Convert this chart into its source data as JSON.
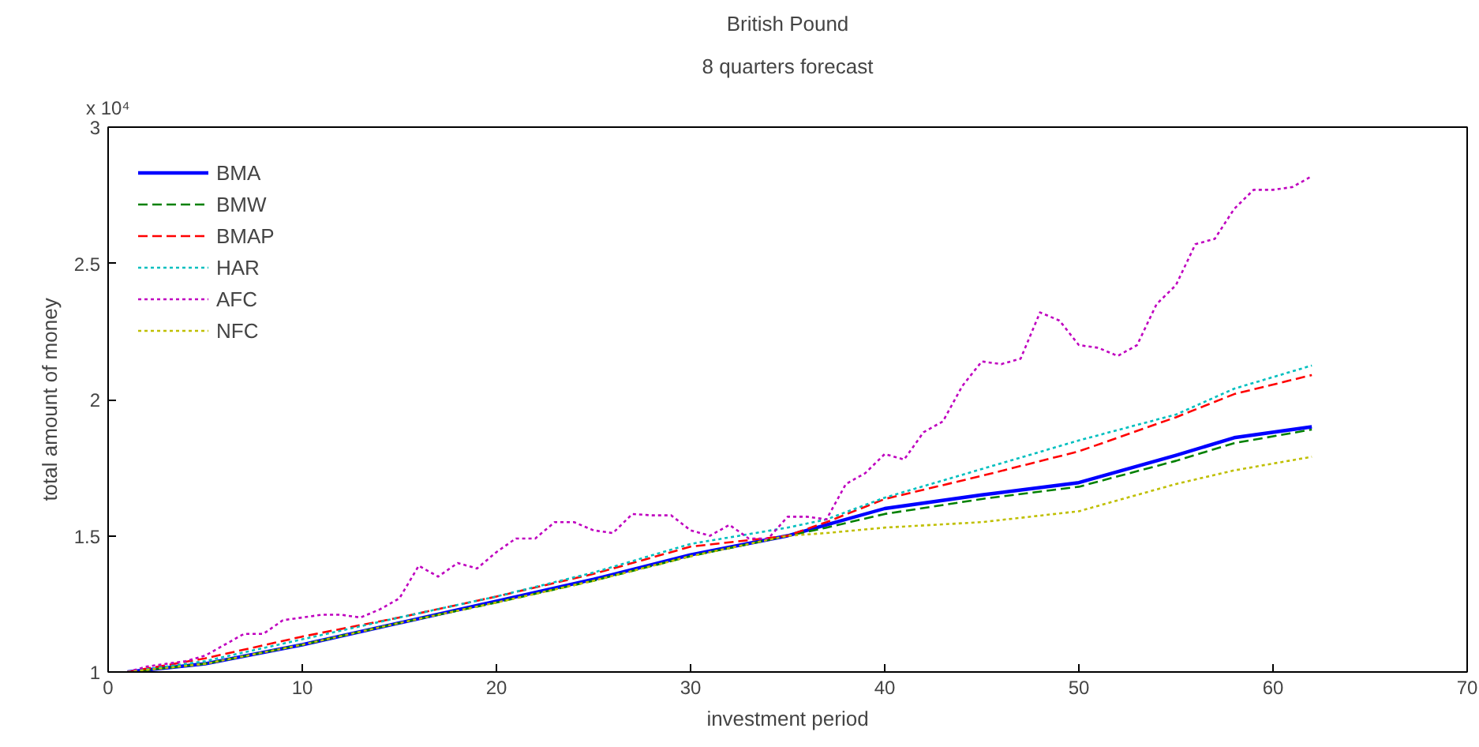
{
  "chart_data": {
    "type": "line",
    "title": "British Pound",
    "subtitle": "8 quarters forecast",
    "xlabel": "investment period",
    "ylabel": "total amount of money",
    "annotations": [
      "x 10⁴"
    ],
    "xlim": [
      0,
      70
    ],
    "xticks": [
      0,
      10,
      20,
      30,
      40,
      50,
      60,
      70
    ],
    "ylim": [
      1,
      3
    ],
    "yticks": [
      1,
      1.5,
      2,
      2.5,
      3
    ],
    "grid": false,
    "legend": "top left",
    "marker": "none",
    "series": [
      {
        "name": "BMA",
        "color": "#0000ff",
        "line_style": "solid",
        "x": [
          1,
          5,
          10,
          15,
          20,
          25,
          30,
          35,
          37,
          40,
          45,
          50,
          55,
          58,
          62
        ],
        "values": [
          1.0,
          1.03,
          1.1,
          1.18,
          1.26,
          1.34,
          1.43,
          1.5,
          1.54,
          1.6,
          1.65,
          1.695,
          1.795,
          1.86,
          1.9
        ]
      },
      {
        "name": "BMW",
        "color": "#008000",
        "line_style": "dashed",
        "x": [
          1,
          5,
          10,
          15,
          20,
          25,
          30,
          35,
          37,
          40,
          45,
          50,
          55,
          58,
          62
        ],
        "values": [
          1.0,
          1.03,
          1.1,
          1.18,
          1.255,
          1.335,
          1.425,
          1.5,
          1.53,
          1.58,
          1.635,
          1.68,
          1.775,
          1.84,
          1.89
        ]
      },
      {
        "name": "BMAP",
        "color": "#ff0000",
        "line_style": "dashed",
        "x": [
          1,
          5,
          10,
          15,
          20,
          25,
          30,
          35,
          37,
          40,
          45,
          50,
          55,
          58,
          62
        ],
        "values": [
          1.0,
          1.05,
          1.13,
          1.2,
          1.277,
          1.36,
          1.46,
          1.5,
          1.55,
          1.635,
          1.72,
          1.81,
          1.935,
          2.02,
          2.09
        ]
      },
      {
        "name": "HAR",
        "color": "#00bfbf",
        "line_style": "dotted",
        "x": [
          1,
          5,
          10,
          15,
          20,
          25,
          30,
          35,
          37,
          40,
          45,
          50,
          55,
          58,
          62
        ],
        "values": [
          1.0,
          1.04,
          1.12,
          1.2,
          1.277,
          1.365,
          1.47,
          1.53,
          1.56,
          1.64,
          1.745,
          1.85,
          1.945,
          2.04,
          2.125
        ]
      },
      {
        "name": "AFC",
        "color": "#bf00bf",
        "line_style": "dotted",
        "x": [
          1,
          2,
          3,
          4,
          5,
          6,
          7,
          8,
          9,
          10,
          11,
          12,
          13,
          14,
          15,
          16,
          17,
          18,
          19,
          20,
          21,
          22,
          23,
          24,
          25,
          26,
          27,
          28,
          29,
          30,
          31,
          32,
          33,
          34,
          35,
          36,
          37,
          38,
          39,
          40,
          41,
          42,
          43,
          44,
          45,
          46,
          47,
          48,
          49,
          50,
          51,
          52,
          53,
          54,
          55,
          56,
          57,
          58,
          59,
          60,
          61,
          62
        ],
        "values": [
          1.0,
          1.02,
          1.03,
          1.04,
          1.06,
          1.1,
          1.14,
          1.14,
          1.19,
          1.2,
          1.21,
          1.21,
          1.2,
          1.23,
          1.27,
          1.39,
          1.35,
          1.4,
          1.38,
          1.44,
          1.49,
          1.49,
          1.55,
          1.55,
          1.52,
          1.51,
          1.58,
          1.575,
          1.575,
          1.52,
          1.5,
          1.54,
          1.49,
          1.49,
          1.57,
          1.57,
          1.56,
          1.69,
          1.73,
          1.8,
          1.78,
          1.88,
          1.92,
          2.05,
          2.14,
          2.13,
          2.15,
          2.32,
          2.29,
          2.2,
          2.19,
          2.16,
          2.2,
          2.35,
          2.42,
          2.57,
          2.59,
          2.7,
          2.77,
          2.77,
          2.78,
          2.82
        ]
      },
      {
        "name": "NFC",
        "color": "#bfbf00",
        "line_style": "dotted",
        "x": [
          1,
          5,
          10,
          15,
          20,
          25,
          30,
          35,
          37,
          40,
          45,
          50,
          55,
          58,
          62
        ],
        "values": [
          1.0,
          1.03,
          1.1,
          1.18,
          1.255,
          1.335,
          1.425,
          1.5,
          1.51,
          1.53,
          1.55,
          1.59,
          1.69,
          1.74,
          1.79
        ]
      }
    ]
  }
}
